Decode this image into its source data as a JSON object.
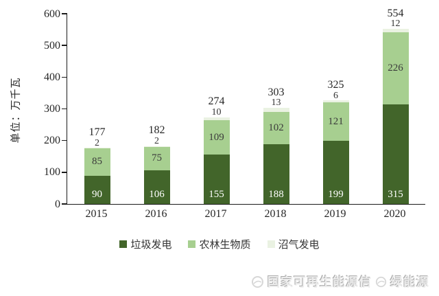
{
  "chart_data": {
    "type": "bar",
    "stacked": true,
    "categories": [
      "2015",
      "2016",
      "2017",
      "2018",
      "2019",
      "2020"
    ],
    "series": [
      {
        "name": "垃圾发电",
        "color": "#42652a",
        "values": [
          90,
          106,
          155,
          188,
          199,
          315
        ]
      },
      {
        "name": "农林生物质",
        "color": "#a7cf90",
        "values": [
          85,
          75,
          109,
          102,
          121,
          226
        ]
      },
      {
        "name": "沼气发电",
        "color": "#eaf2e2",
        "values": [
          2,
          2,
          10,
          13,
          6,
          12
        ]
      }
    ],
    "totals": [
      177,
      182,
      274,
      303,
      325,
      554
    ],
    "ylabel": "单位：万千瓦",
    "y_ticks": [
      0,
      100,
      200,
      300,
      400,
      500,
      600
    ],
    "ylim": [
      0,
      600
    ],
    "grid": false,
    "legend_position": "bottom"
  },
  "watermark": {
    "left_text": "国家可再生能源信",
    "right_text": "绿能源"
  }
}
